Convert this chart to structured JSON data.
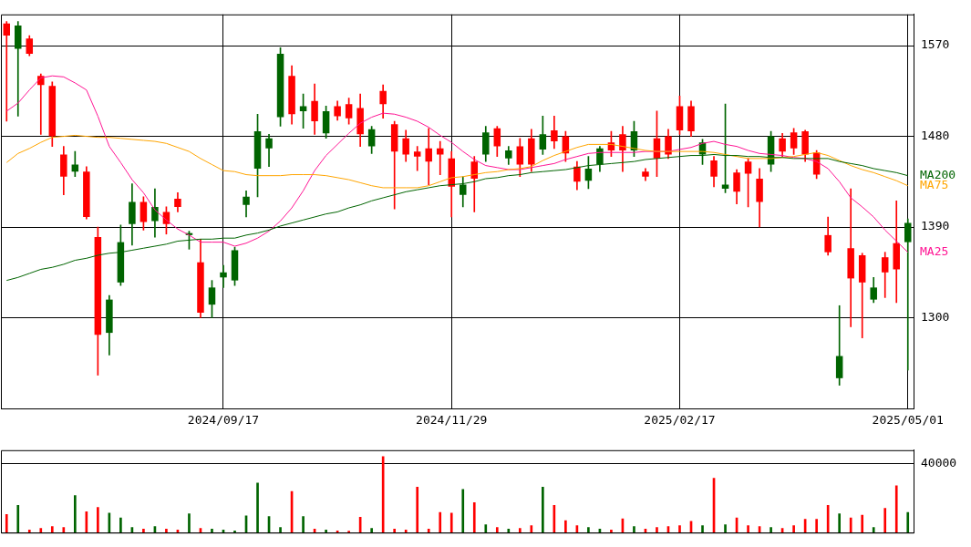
{
  "chart_data": [
    {
      "type": "candlestick",
      "categories": [
        null,
        null,
        null,
        null,
        null,
        null,
        null,
        null,
        null,
        null,
        null,
        null,
        null,
        null,
        null,
        null,
        null,
        null,
        null,
        "2024/09/17",
        null,
        null,
        null,
        null,
        null,
        null,
        null,
        null,
        null,
        null,
        null,
        null,
        null,
        null,
        null,
        null,
        null,
        null,
        null,
        "2024/11/29",
        null,
        null,
        null,
        null,
        null,
        null,
        null,
        null,
        null,
        null,
        null,
        null,
        null,
        null,
        null,
        null,
        null,
        null,
        null,
        "2025/02/17",
        null,
        null,
        null,
        null,
        null,
        null,
        null,
        null,
        null,
        null,
        null,
        null,
        null,
        null,
        null,
        null,
        null,
        null,
        null,
        "2025/05/01"
      ],
      "ohlc": [
        [
          1592,
          1594,
          1495,
          1580
        ],
        [
          1567,
          1594,
          1500,
          1590
        ],
        [
          1577,
          1580,
          1560,
          1562
        ],
        [
          1540,
          1542,
          1482,
          1531
        ],
        [
          1530,
          1534,
          1470,
          1480
        ],
        [
          1462,
          1470,
          1422,
          1440
        ],
        [
          1445,
          1465,
          1440,
          1452
        ],
        [
          1445,
          1450,
          1398,
          1400
        ],
        [
          1380,
          1390,
          1243,
          1283
        ],
        [
          1285,
          1322,
          1263,
          1318
        ],
        [
          1335,
          1392,
          1332,
          1375
        ],
        [
          1393,
          1433,
          1372,
          1415
        ],
        [
          1415,
          1420,
          1387,
          1395
        ],
        [
          1396,
          1428,
          1380,
          1410
        ],
        [
          1405,
          1410,
          1383,
          1393
        ],
        [
          1418,
          1424,
          1405,
          1410
        ],
        [
          1382,
          1386,
          1368,
          1384
        ],
        [
          1355,
          1378,
          1300,
          1305
        ],
        [
          1313,
          1337,
          1300,
          1330
        ],
        [
          1340,
          1352,
          1330,
          1345
        ],
        [
          1337,
          1370,
          1332,
          1367
        ],
        [
          1412,
          1426,
          1400,
          1420
        ],
        [
          1448,
          1502,
          1420,
          1485
        ],
        [
          1468,
          1482,
          1450,
          1478
        ],
        [
          1499,
          1568,
          1490,
          1562
        ],
        [
          1540,
          1550,
          1492,
          1502
        ],
        [
          1505,
          1522,
          1488,
          1510
        ],
        [
          1515,
          1532,
          1482,
          1495
        ],
        [
          1483,
          1510,
          1478,
          1505
        ],
        [
          1510,
          1515,
          1496,
          1500
        ],
        [
          1512,
          1518,
          1492,
          1498
        ],
        [
          1508,
          1522,
          1470,
          1482
        ],
        [
          1470,
          1490,
          1463,
          1487
        ],
        [
          1525,
          1531,
          1498,
          1512
        ],
        [
          1492,
          1495,
          1408,
          1465
        ],
        [
          1478,
          1486,
          1455,
          1462
        ],
        [
          1465,
          1470,
          1446,
          1460
        ],
        [
          1468,
          1488,
          1432,
          1455
        ],
        [
          1468,
          1475,
          1442,
          1462
        ],
        [
          1458,
          1465,
          1400,
          1430
        ],
        [
          1422,
          1440,
          1410,
          1432
        ],
        [
          1455,
          1460,
          1405,
          1438
        ],
        [
          1462,
          1490,
          1455,
          1484
        ],
        [
          1488,
          1490,
          1460,
          1470
        ],
        [
          1458,
          1470,
          1452,
          1466
        ],
        [
          1470,
          1478,
          1440,
          1452
        ],
        [
          1478,
          1487,
          1445,
          1452
        ],
        [
          1467,
          1500,
          1462,
          1482
        ],
        [
          1486,
          1500,
          1468,
          1475
        ],
        [
          1480,
          1485,
          1455,
          1463
        ],
        [
          1450,
          1455,
          1427,
          1435
        ],
        [
          1436,
          1460,
          1428,
          1448
        ],
        [
          1452,
          1470,
          1445,
          1468
        ],
        [
          1474,
          1485,
          1460,
          1466
        ],
        [
          1482,
          1490,
          1445,
          1466
        ],
        [
          1466,
          1495,
          1460,
          1485
        ],
        [
          1445,
          1448,
          1436,
          1440
        ],
        [
          1478,
          1505,
          1440,
          1458
        ],
        [
          1480,
          1487,
          1458,
          1462
        ],
        [
          1510,
          1520,
          1482,
          1486
        ],
        [
          1510,
          1515,
          1480,
          1485
        ],
        [
          1462,
          1477,
          1452,
          1474
        ],
        [
          1456,
          1460,
          1430,
          1440
        ],
        [
          1428,
          1512,
          1424,
          1432
        ],
        [
          1444,
          1447,
          1413,
          1425
        ],
        [
          1455,
          1458,
          1410,
          1443
        ],
        [
          1438,
          1448,
          1390,
          1415
        ],
        [
          1452,
          1485,
          1445,
          1480
        ],
        [
          1478,
          1483,
          1460,
          1465
        ],
        [
          1484,
          1488,
          1462,
          1468
        ],
        [
          1485,
          1486,
          1455,
          1462
        ],
        [
          1464,
          1466,
          1438,
          1442
        ],
        [
          1382,
          1400,
          1362,
          1365
        ],
        [
          1240,
          1312,
          1233,
          1262
        ],
        [
          1369,
          1428,
          1291,
          1339
        ],
        [
          1362,
          1364,
          1280,
          1335
        ],
        [
          1318,
          1340,
          1315,
          1330
        ],
        [
          1360,
          1365,
          1320,
          1345
        ],
        [
          1374,
          1416,
          1315,
          1348
        ],
        [
          1375,
          1398,
          1248,
          1394
        ]
      ],
      "colors": [
        "#ff0000",
        "#006400",
        "#ff0000",
        "#ff0000",
        "#ff0000",
        "#ff0000",
        "#006400",
        "#ff0000",
        "#ff0000",
        "#006400",
        "#006400",
        "#006400",
        "#ff0000",
        "#006400",
        "#ff0000",
        "#ff0000",
        "#006400",
        "#ff0000",
        "#006400",
        "#006400",
        "#006400",
        "#006400",
        "#006400",
        "#006400",
        "#006400",
        "#ff0000",
        "#006400",
        "#ff0000",
        "#006400",
        "#ff0000",
        "#ff0000",
        "#ff0000",
        "#006400",
        "#ff0000",
        "#ff0000",
        "#ff0000",
        "#ff0000",
        "#ff0000",
        "#ff0000",
        "#ff0000",
        "#006400",
        "#ff0000",
        "#006400",
        "#ff0000",
        "#006400",
        "#ff0000",
        "#ff0000",
        "#006400",
        "#ff0000",
        "#ff0000",
        "#ff0000",
        "#006400",
        "#006400",
        "#ff0000",
        "#ff0000",
        "#006400",
        "#ff0000",
        "#ff0000",
        "#ff0000",
        "#ff0000",
        "#ff0000",
        "#006400",
        "#ff0000",
        "#006400",
        "#ff0000",
        "#ff0000",
        "#ff0000",
        "#006400",
        "#ff0000",
        "#ff0000",
        "#ff0000",
        "#ff0000",
        "#ff0000",
        "#006400",
        "#ff0000",
        "#ff0000",
        "#006400",
        "#ff0000",
        "#ff0000",
        "#006400"
      ],
      "series": [
        {
          "type": "line",
          "name": "MA200",
          "color": "#006400",
          "values": [
            1337,
            1340,
            1344,
            1348,
            1350,
            1353,
            1357,
            1359,
            1362,
            1364,
            1365,
            1367,
            1369,
            1371,
            1373,
            1376,
            1377,
            1378,
            1378,
            1379,
            1379,
            1382,
            1384,
            1387,
            1391,
            1394,
            1397,
            1400,
            1403,
            1405,
            1409,
            1412,
            1416,
            1419,
            1422,
            1425,
            1427,
            1429,
            1431,
            1432,
            1433,
            1435,
            1438,
            1439,
            1441,
            1442,
            1444,
            1445,
            1446,
            1447,
            1449,
            1451,
            1452,
            1453,
            1454,
            1455,
            1457,
            1458,
            1459,
            1460,
            1461,
            1461,
            1462,
            1461,
            1461,
            1460,
            1460,
            1459,
            1459,
            1458,
            1458,
            1458,
            1458,
            1455,
            1453,
            1451,
            1448,
            1446,
            1444,
            1441
          ]
        },
        {
          "type": "line",
          "name": "MA75",
          "color": "#ffa500",
          "values": [
            1454,
            1463,
            1468,
            1474,
            1479,
            1480,
            1481,
            1480,
            1479,
            1479,
            1478,
            1477,
            1476,
            1475,
            1473,
            1469,
            1465,
            1458,
            1452,
            1446,
            1445,
            1442,
            1441,
            1441,
            1441,
            1442,
            1442,
            1442,
            1441,
            1439,
            1437,
            1434,
            1431,
            1429,
            1429,
            1429,
            1429,
            1431,
            1435,
            1439,
            1440,
            1442,
            1444,
            1445,
            1447,
            1448,
            1450,
            1456,
            1461,
            1465,
            1469,
            1472,
            1472,
            1472,
            1470,
            1468,
            1466,
            1465,
            1465,
            1465,
            1465,
            1465,
            1464,
            1462,
            1460,
            1458,
            1458,
            1458,
            1459,
            1460,
            1462,
            1464,
            1461,
            1456,
            1451,
            1447,
            1444,
            1440,
            1436,
            1431
          ]
        },
        {
          "type": "line",
          "name": "MA25",
          "color": "#ff1493",
          "values": [
            1505,
            1513,
            1526,
            1538,
            1540,
            1539,
            1533,
            1526,
            1500,
            1470,
            1454,
            1437,
            1424,
            1407,
            1397,
            1388,
            1382,
            1375,
            1375,
            1375,
            1371,
            1374,
            1379,
            1386,
            1396,
            1409,
            1426,
            1446,
            1461,
            1472,
            1483,
            1493,
            1499,
            1503,
            1502,
            1499,
            1495,
            1489,
            1481,
            1474,
            1465,
            1457,
            1451,
            1449,
            1447,
            1447,
            1449,
            1451,
            1453,
            1457,
            1460,
            1463,
            1464,
            1464,
            1464,
            1464,
            1465,
            1465,
            1465,
            1467,
            1469,
            1473,
            1475,
            1472,
            1470,
            1466,
            1463,
            1462,
            1461,
            1459,
            1458,
            1455,
            1448,
            1435,
            1419,
            1410,
            1400,
            1387,
            1376,
            1365
          ]
        }
      ],
      "ylim": [
        1210,
        1601
      ],
      "yticks": [
        1300,
        1390,
        1480,
        1570
      ],
      "grid": true
    },
    {
      "type": "bar",
      "categories": [
        null,
        null,
        null,
        null,
        null,
        null,
        null,
        null,
        null,
        null,
        null,
        null,
        null,
        null,
        null,
        null,
        null,
        null,
        null,
        null,
        null,
        null,
        null,
        null,
        null,
        null,
        null,
        null,
        null,
        null,
        null,
        null,
        null,
        null,
        null,
        null,
        null,
        null,
        null,
        null,
        null,
        null,
        null,
        null,
        null,
        null,
        null,
        null,
        null,
        null,
        null,
        null,
        null,
        null,
        null,
        null,
        null,
        null,
        null,
        null,
        null,
        null,
        null,
        null,
        null,
        null,
        null,
        null,
        null,
        null,
        null,
        null,
        null,
        null,
        null,
        null,
        null,
        null,
        null,
        null
      ],
      "values": [
        10500,
        15700,
        1500,
        2500,
        3500,
        3000,
        21400,
        12100,
        14600,
        11300,
        8500,
        3000,
        2000,
        3500,
        2000,
        1500,
        10900,
        2500,
        2000,
        1500,
        1000,
        9700,
        28700,
        9300,
        3000,
        23800,
        9300,
        2000,
        1500,
        1000,
        800,
        8900,
        2500,
        44000,
        2000,
        1500,
        26300,
        2000,
        11700,
        11300,
        25000,
        17400,
        4500,
        3000,
        2000,
        2500,
        4000,
        26300,
        15700,
        6900,
        4000,
        3000,
        2000,
        1500,
        8000,
        3500,
        2000,
        3000,
        3500,
        4000,
        6500,
        4000,
        31500,
        4500,
        8500,
        4000,
        3500,
        3000,
        2500,
        4000,
        7700,
        7700,
        15700,
        10900,
        8500,
        10100,
        3000,
        14100,
        27100,
        11700
      ],
      "colors": [
        "#ff0000",
        "#006400",
        "#ff0000",
        "#ff0000",
        "#ff0000",
        "#ff0000",
        "#006400",
        "#ff0000",
        "#ff0000",
        "#006400",
        "#006400",
        "#006400",
        "#ff0000",
        "#006400",
        "#ff0000",
        "#ff0000",
        "#006400",
        "#ff0000",
        "#006400",
        "#006400",
        "#006400",
        "#006400",
        "#006400",
        "#006400",
        "#006400",
        "#ff0000",
        "#006400",
        "#ff0000",
        "#006400",
        "#ff0000",
        "#ff0000",
        "#ff0000",
        "#006400",
        "#ff0000",
        "#ff0000",
        "#ff0000",
        "#ff0000",
        "#ff0000",
        "#ff0000",
        "#ff0000",
        "#006400",
        "#ff0000",
        "#006400",
        "#ff0000",
        "#006400",
        "#ff0000",
        "#ff0000",
        "#006400",
        "#ff0000",
        "#ff0000",
        "#ff0000",
        "#006400",
        "#006400",
        "#ff0000",
        "#ff0000",
        "#006400",
        "#ff0000",
        "#ff0000",
        "#ff0000",
        "#ff0000",
        "#ff0000",
        "#006400",
        "#ff0000",
        "#006400",
        "#ff0000",
        "#ff0000",
        "#ff0000",
        "#006400",
        "#ff0000",
        "#ff0000",
        "#ff0000",
        "#ff0000",
        "#ff0000",
        "#006400",
        "#ff0000",
        "#ff0000",
        "#006400",
        "#ff0000",
        "#ff0000",
        "#006400"
      ],
      "ylim": [
        0,
        47700
      ],
      "yticks": [
        {
          "value": 0,
          "label": null
        },
        40000
      ],
      "grid": "y",
      "tick_labels": "y"
    }
  ]
}
